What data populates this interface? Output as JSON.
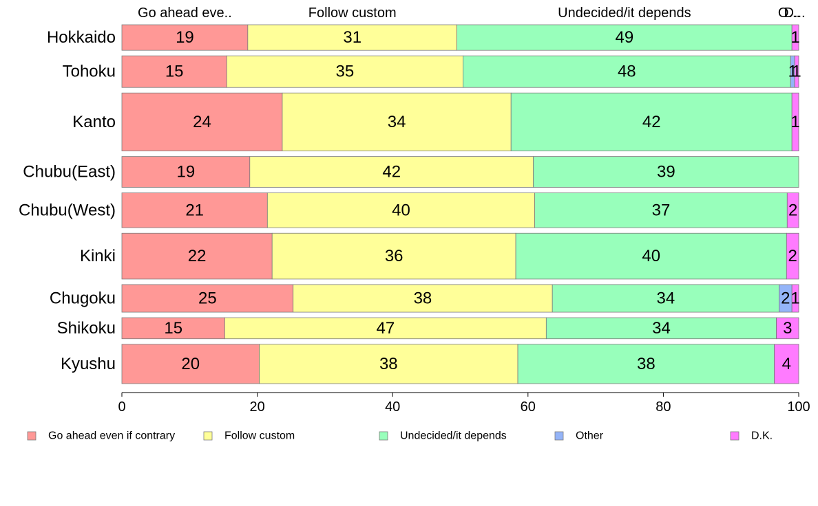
{
  "chart_data": {
    "type": "bar",
    "orientation": "horizontal",
    "stacked": true,
    "title": "",
    "xlabel": "",
    "ylabel": "",
    "xlim": [
      0,
      100
    ],
    "xticks": [
      0,
      20,
      40,
      60,
      80,
      100
    ],
    "grid": false,
    "legend": "bottom",
    "categories": [
      "Hokkaido",
      "Tohoku",
      "Kanto",
      "Chubu(East)",
      "Chubu(West)",
      "Kinki",
      "Chugoku",
      "Shikoku",
      "Kyushu"
    ],
    "category_weights": [
      0.63,
      0.78,
      1.43,
      0.76,
      0.86,
      1.13,
      0.68,
      0.52,
      0.97
    ],
    "column_headers": [
      "Go ahead eve..",
      "Follow custom",
      "Undecided/it depends",
      "O...",
      "D..."
    ],
    "series": [
      {
        "name": "Go ahead even if contrary",
        "color": "#ff9896",
        "values": [
          18.6,
          15.5,
          23.7,
          18.9,
          21.5,
          22.2,
          25.3,
          15.2,
          20.3
        ],
        "labels": [
          "19",
          "15",
          "24",
          "19",
          "21",
          "22",
          "25",
          "15",
          "20"
        ]
      },
      {
        "name": "Follow custom",
        "color": "#ffff99",
        "values": [
          30.9,
          34.9,
          33.8,
          41.9,
          39.5,
          36.0,
          38.3,
          47.5,
          38.2
        ],
        "labels": [
          "31",
          "35",
          "34",
          "42",
          "40",
          "36",
          "38",
          "47",
          "38"
        ]
      },
      {
        "name": "Undecided/it depends",
        "color": "#98ffbb",
        "values": [
          49.5,
          48.4,
          41.5,
          39.2,
          37.3,
          40.0,
          33.5,
          34.0,
          37.9
        ],
        "labels": [
          "49",
          "48",
          "42",
          "39",
          "37",
          "40",
          "34",
          "34",
          "38"
        ]
      },
      {
        "name": "Other",
        "color": "#94b4f8",
        "values": [
          0,
          0.6,
          0,
          0,
          0,
          0,
          1.9,
          0,
          0
        ],
        "labels": [
          "",
          "1",
          "",
          "",
          "",
          "",
          "2",
          "",
          ""
        ]
      },
      {
        "name": "D.K.",
        "color": "#ff7bff",
        "values": [
          1.0,
          0.6,
          1.0,
          0,
          1.7,
          1.8,
          1.0,
          3.3,
          3.6
        ],
        "labels": [
          "1",
          "1",
          "1",
          "",
          "2",
          "2",
          "1",
          "3",
          "4"
        ]
      }
    ]
  }
}
